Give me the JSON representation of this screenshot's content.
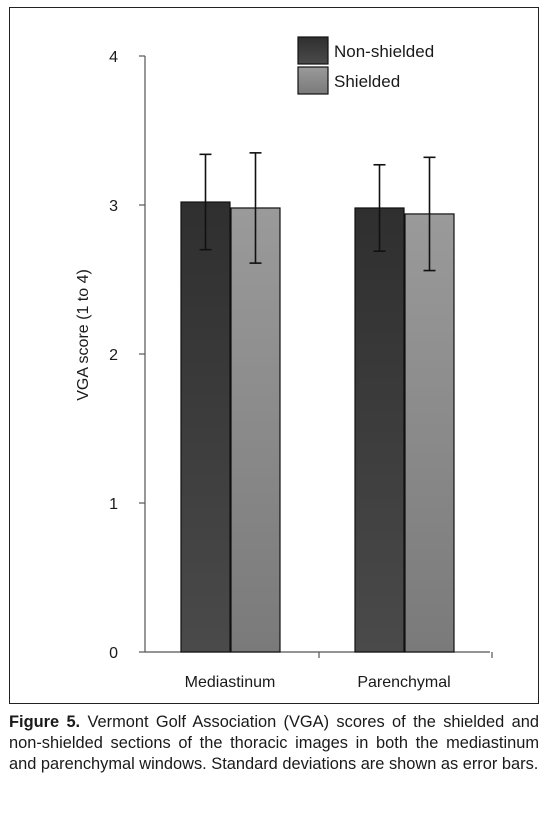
{
  "chart_data": {
    "type": "bar",
    "categories": [
      "Mediastinum",
      "Parenchymal"
    ],
    "series": [
      {
        "name": "Non-shielded",
        "values": [
          3.02,
          2.98
        ],
        "error": [
          0.32,
          0.29
        ]
      },
      {
        "name": "Shielded",
        "values": [
          2.98,
          2.94
        ],
        "error": [
          0.37,
          0.38
        ]
      }
    ],
    "ylabel": "VGA score (1 to 4)",
    "xlabel": "",
    "ylim": [
      0,
      4
    ],
    "yticks": [
      0,
      1,
      2,
      3,
      4
    ],
    "error_bars": true,
    "grid": false,
    "legend_position": "top-right",
    "colors": {
      "Non-shielded": "#3a3a3a",
      "Shielded": "#8c8c8c"
    }
  },
  "caption": {
    "label": "Figure 5.",
    "text": " Vermont Golf Association (VGA) scores of the shielded and non-shielded sections of the thoracic images in both the mediastinum and parenchymal windows. Standard deviations are shown as error bars."
  }
}
